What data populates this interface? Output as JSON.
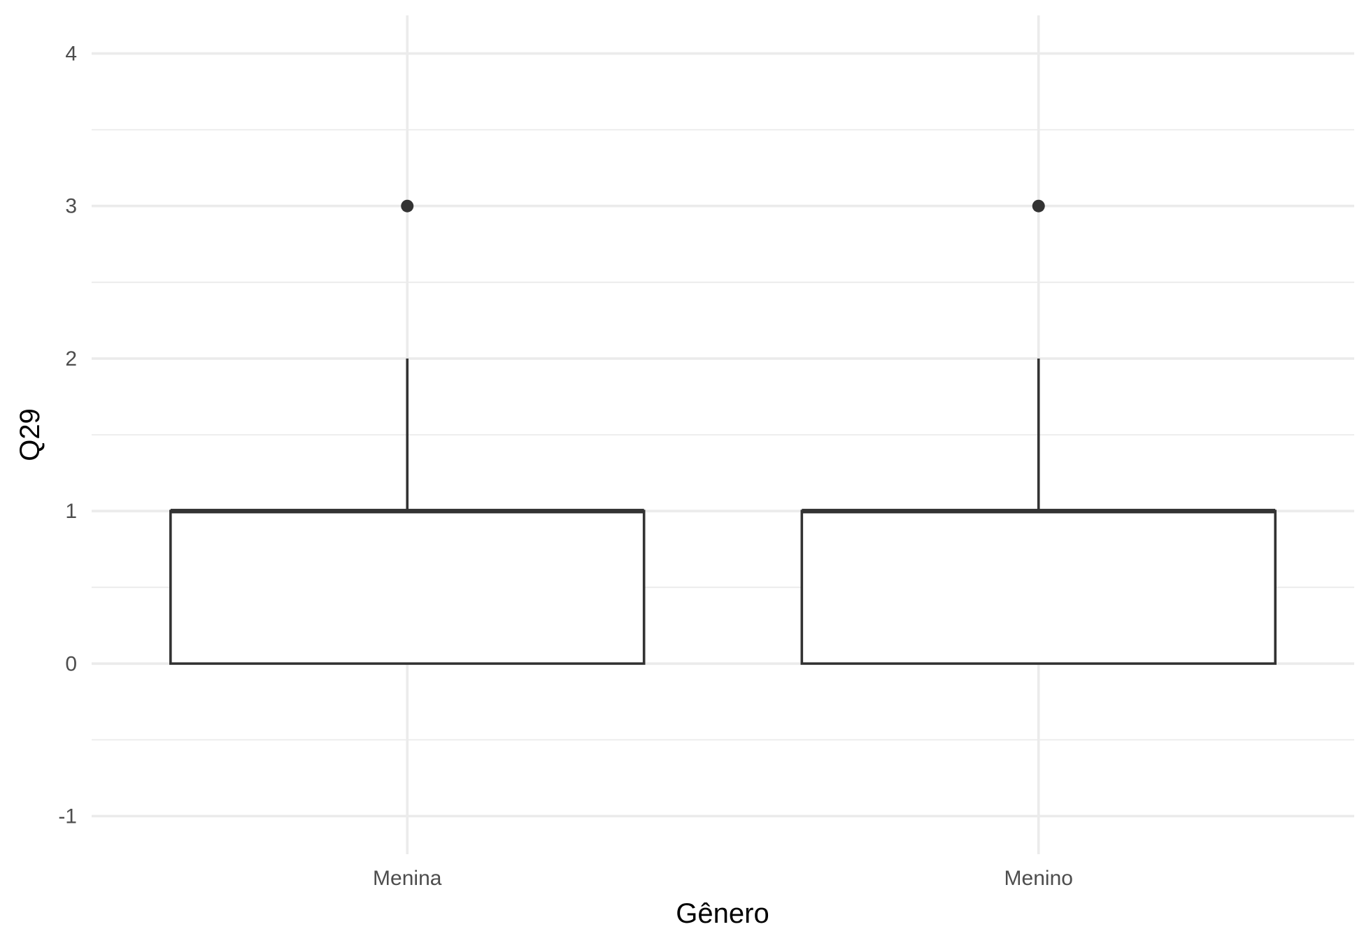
{
  "chart_data": {
    "type": "boxplot",
    "xlabel": "Gênero",
    "ylabel": "Q29",
    "ylim": [
      -1.25,
      4.25
    ],
    "yticks": [
      -1,
      0,
      1,
      2,
      3,
      4
    ],
    "y_minor_ticks": [
      -0.5,
      0.5,
      1.5,
      2.5,
      3.5
    ],
    "categories": [
      "Menina",
      "Menino"
    ],
    "grid": true,
    "series": [
      {
        "category": "Menina",
        "min": 0,
        "q1": 0,
        "median": 1,
        "q3": 1,
        "max": 2,
        "outliers": [
          3
        ]
      },
      {
        "category": "Menino",
        "min": 0,
        "q1": 0,
        "median": 1,
        "q3": 1,
        "max": 2,
        "outliers": [
          3
        ]
      }
    ],
    "colors": {
      "box_line": "#333333",
      "box_fill": "#ffffff",
      "grid": "#ebebeb",
      "tick_text": "#4d4d4d"
    }
  }
}
